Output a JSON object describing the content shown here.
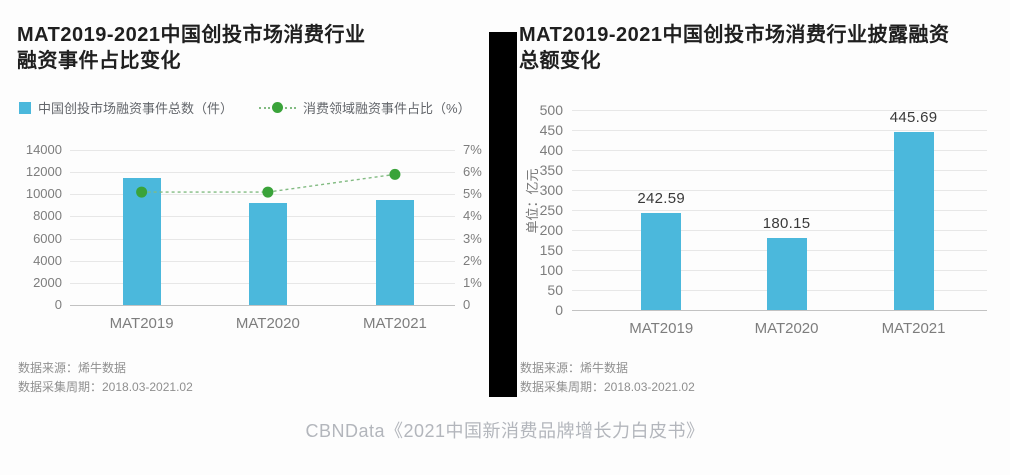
{
  "caption": "CBNData《2021中国新消费品牌增长力白皮书》",
  "colors": {
    "bar": "#4bb8dc",
    "line_dot": "#3aa33a",
    "dash": "#82bb82",
    "title": "#1f1f1f",
    "axis_text": "#7d7d7d",
    "grid": "#e7e7e7",
    "axis_line": "#c2c2c2",
    "footnote": "#8f8f8f",
    "caption": "#b3b6bc",
    "value_label": "#3a3a3a",
    "legend_text": "#63666b",
    "divider": "#000000"
  },
  "chart_data": [
    {
      "type": "bar+line",
      "title": "MAT2019-2021中国创投市场消费行业融资事件占比变化",
      "title_lines": [
        "MAT2019-2021中国创投市场消费行业",
        "融资事件占比变化"
      ],
      "categories": [
        "MAT2019",
        "MAT2020",
        "MAT2021"
      ],
      "series": [
        {
          "name": "中国创投市场融资事件总数（件）",
          "type": "bar",
          "axis": "left",
          "values": [
            11450,
            9200,
            9500
          ]
        },
        {
          "name": "消费领域融资事件占比（%）",
          "type": "line",
          "axis": "right",
          "values": [
            5.1,
            5.1,
            5.9
          ]
        }
      ],
      "left_axis": {
        "min": 0,
        "max": 14000,
        "step": 2000
      },
      "right_axis": {
        "min": 0,
        "max": 7,
        "step": 1,
        "suffix": "%"
      },
      "grid": true,
      "legend_position": "top",
      "source_lines": [
        "数据来源：烯牛数据",
        "数据采集周期：2018.03-2021.02"
      ]
    },
    {
      "type": "bar",
      "title": "MAT2019-2021中国创投市场消费行业披露融资总额变化",
      "title_lines": [
        "MAT2019-2021中国创投市场消费行业披露融资",
        "总额变化"
      ],
      "categories": [
        "MAT2019",
        "MAT2020",
        "MAT2021"
      ],
      "values": [
        242.59,
        180.15,
        445.69
      ],
      "value_labels": [
        "242.59",
        "180.15",
        "445.69"
      ],
      "ylabel": "单位：亿元",
      "yaxis": {
        "min": 0,
        "max": 500,
        "step": 50
      },
      "grid": true,
      "source_lines": [
        "数据来源：烯牛数据",
        "数据采集周期：2018.03-2021.02"
      ]
    }
  ]
}
